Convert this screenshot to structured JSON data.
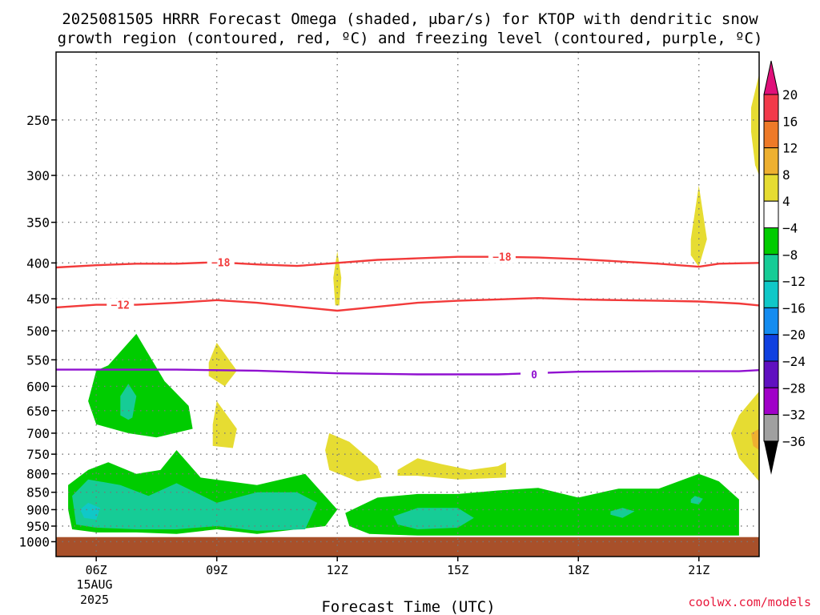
{
  "chart_data": {
    "type": "contour",
    "title": "2025081505 HRRR Forecast Omega (shaded, μbar/s) for KTOP with dendritic snow",
    "subtitle": "growth region (contoured, red, ºC) and freezing level (contoured, purple, ºC)",
    "xlabel": "Forecast Time (UTC)",
    "credit": "coolwx.com/models",
    "date_line1": "15AUG",
    "date_line2": "2025",
    "x_ticks": [
      "06Z",
      "09Z",
      "12Z",
      "15Z",
      "18Z",
      "21Z"
    ],
    "x_hours": [
      6,
      9,
      12,
      15,
      18,
      21
    ],
    "xlim": [
      5,
      22.5
    ],
    "y_ticks": [
      250,
      300,
      350,
      400,
      450,
      500,
      550,
      600,
      650,
      700,
      750,
      800,
      850,
      900,
      950,
      1000
    ],
    "ylim": [
      1050,
      200
    ],
    "y_scale": "log",
    "grid": true,
    "colorbar": {
      "labels": [
        "20",
        "16",
        "12",
        "8",
        "4",
        "−4",
        "−8",
        "−12",
        "−16",
        "−20",
        "−24",
        "−28",
        "−32",
        "−36"
      ],
      "colors": [
        "#f23a4a",
        "#ee7a28",
        "#eeb030",
        "#e6dc32",
        "#ffffff",
        "#00cc00",
        "#16cc96",
        "#10c8c8",
        "#148cf0",
        "#1040e0",
        "#6010c0",
        "#a000c8",
        "#a0a0a0"
      ],
      "top_arrow_color": "#e0107a",
      "bottom_arrow_color": "#000000"
    },
    "contours": [
      {
        "label": "−18",
        "color": "#f23a3a",
        "points": [
          [
            5,
            406
          ],
          [
            6,
            403
          ],
          [
            7,
            401
          ],
          [
            8,
            401
          ],
          [
            9,
            399
          ],
          [
            10,
            402
          ],
          [
            11,
            404
          ],
          [
            12,
            400
          ],
          [
            13,
            396
          ],
          [
            14,
            394
          ],
          [
            15,
            392
          ],
          [
            16,
            392
          ],
          [
            17,
            393
          ],
          [
            18,
            395
          ],
          [
            19,
            398
          ],
          [
            20,
            401
          ],
          [
            21,
            405
          ],
          [
            21.5,
            401
          ],
          [
            22.5,
            400
          ]
        ],
        "label_at": [
          [
            9.1,
            399
          ],
          [
            16.1,
            392
          ]
        ]
      },
      {
        "label": "−12",
        "color": "#f23a3a",
        "points": [
          [
            5,
            463
          ],
          [
            6,
            459
          ],
          [
            7,
            459
          ],
          [
            8,
            456
          ],
          [
            9,
            452
          ],
          [
            10,
            456
          ],
          [
            11,
            462
          ],
          [
            12,
            468
          ],
          [
            13,
            462
          ],
          [
            14,
            456
          ],
          [
            15,
            453
          ],
          [
            16,
            451
          ],
          [
            17,
            449
          ],
          [
            18,
            451
          ],
          [
            19,
            452
          ],
          [
            20,
            453
          ],
          [
            21,
            454
          ],
          [
            22,
            457
          ],
          [
            22.5,
            460
          ]
        ],
        "label_at": [
          [
            6.6,
            459
          ]
        ]
      },
      {
        "label": "0",
        "color": "#9010d0",
        "points": [
          [
            5,
            568
          ],
          [
            8,
            568
          ],
          [
            10,
            570
          ],
          [
            12,
            575
          ],
          [
            14,
            577
          ],
          [
            16,
            577
          ],
          [
            18,
            572
          ],
          [
            20,
            571
          ],
          [
            22,
            571
          ],
          [
            22.5,
            569
          ]
        ],
        "label_at": [
          [
            16.9,
            577
          ]
        ]
      }
    ],
    "shaded_regions": [
      {
        "level": "−4",
        "color": "#00cc00"
      },
      {
        "level": "−8",
        "color": "#16cc96"
      },
      {
        "level": "−12",
        "color": "#10c8c8"
      },
      {
        "level": "4",
        "color": "#e6dc32"
      },
      {
        "level": "12",
        "color": "#eeb030"
      }
    ],
    "ground_color": "#a8502a"
  }
}
